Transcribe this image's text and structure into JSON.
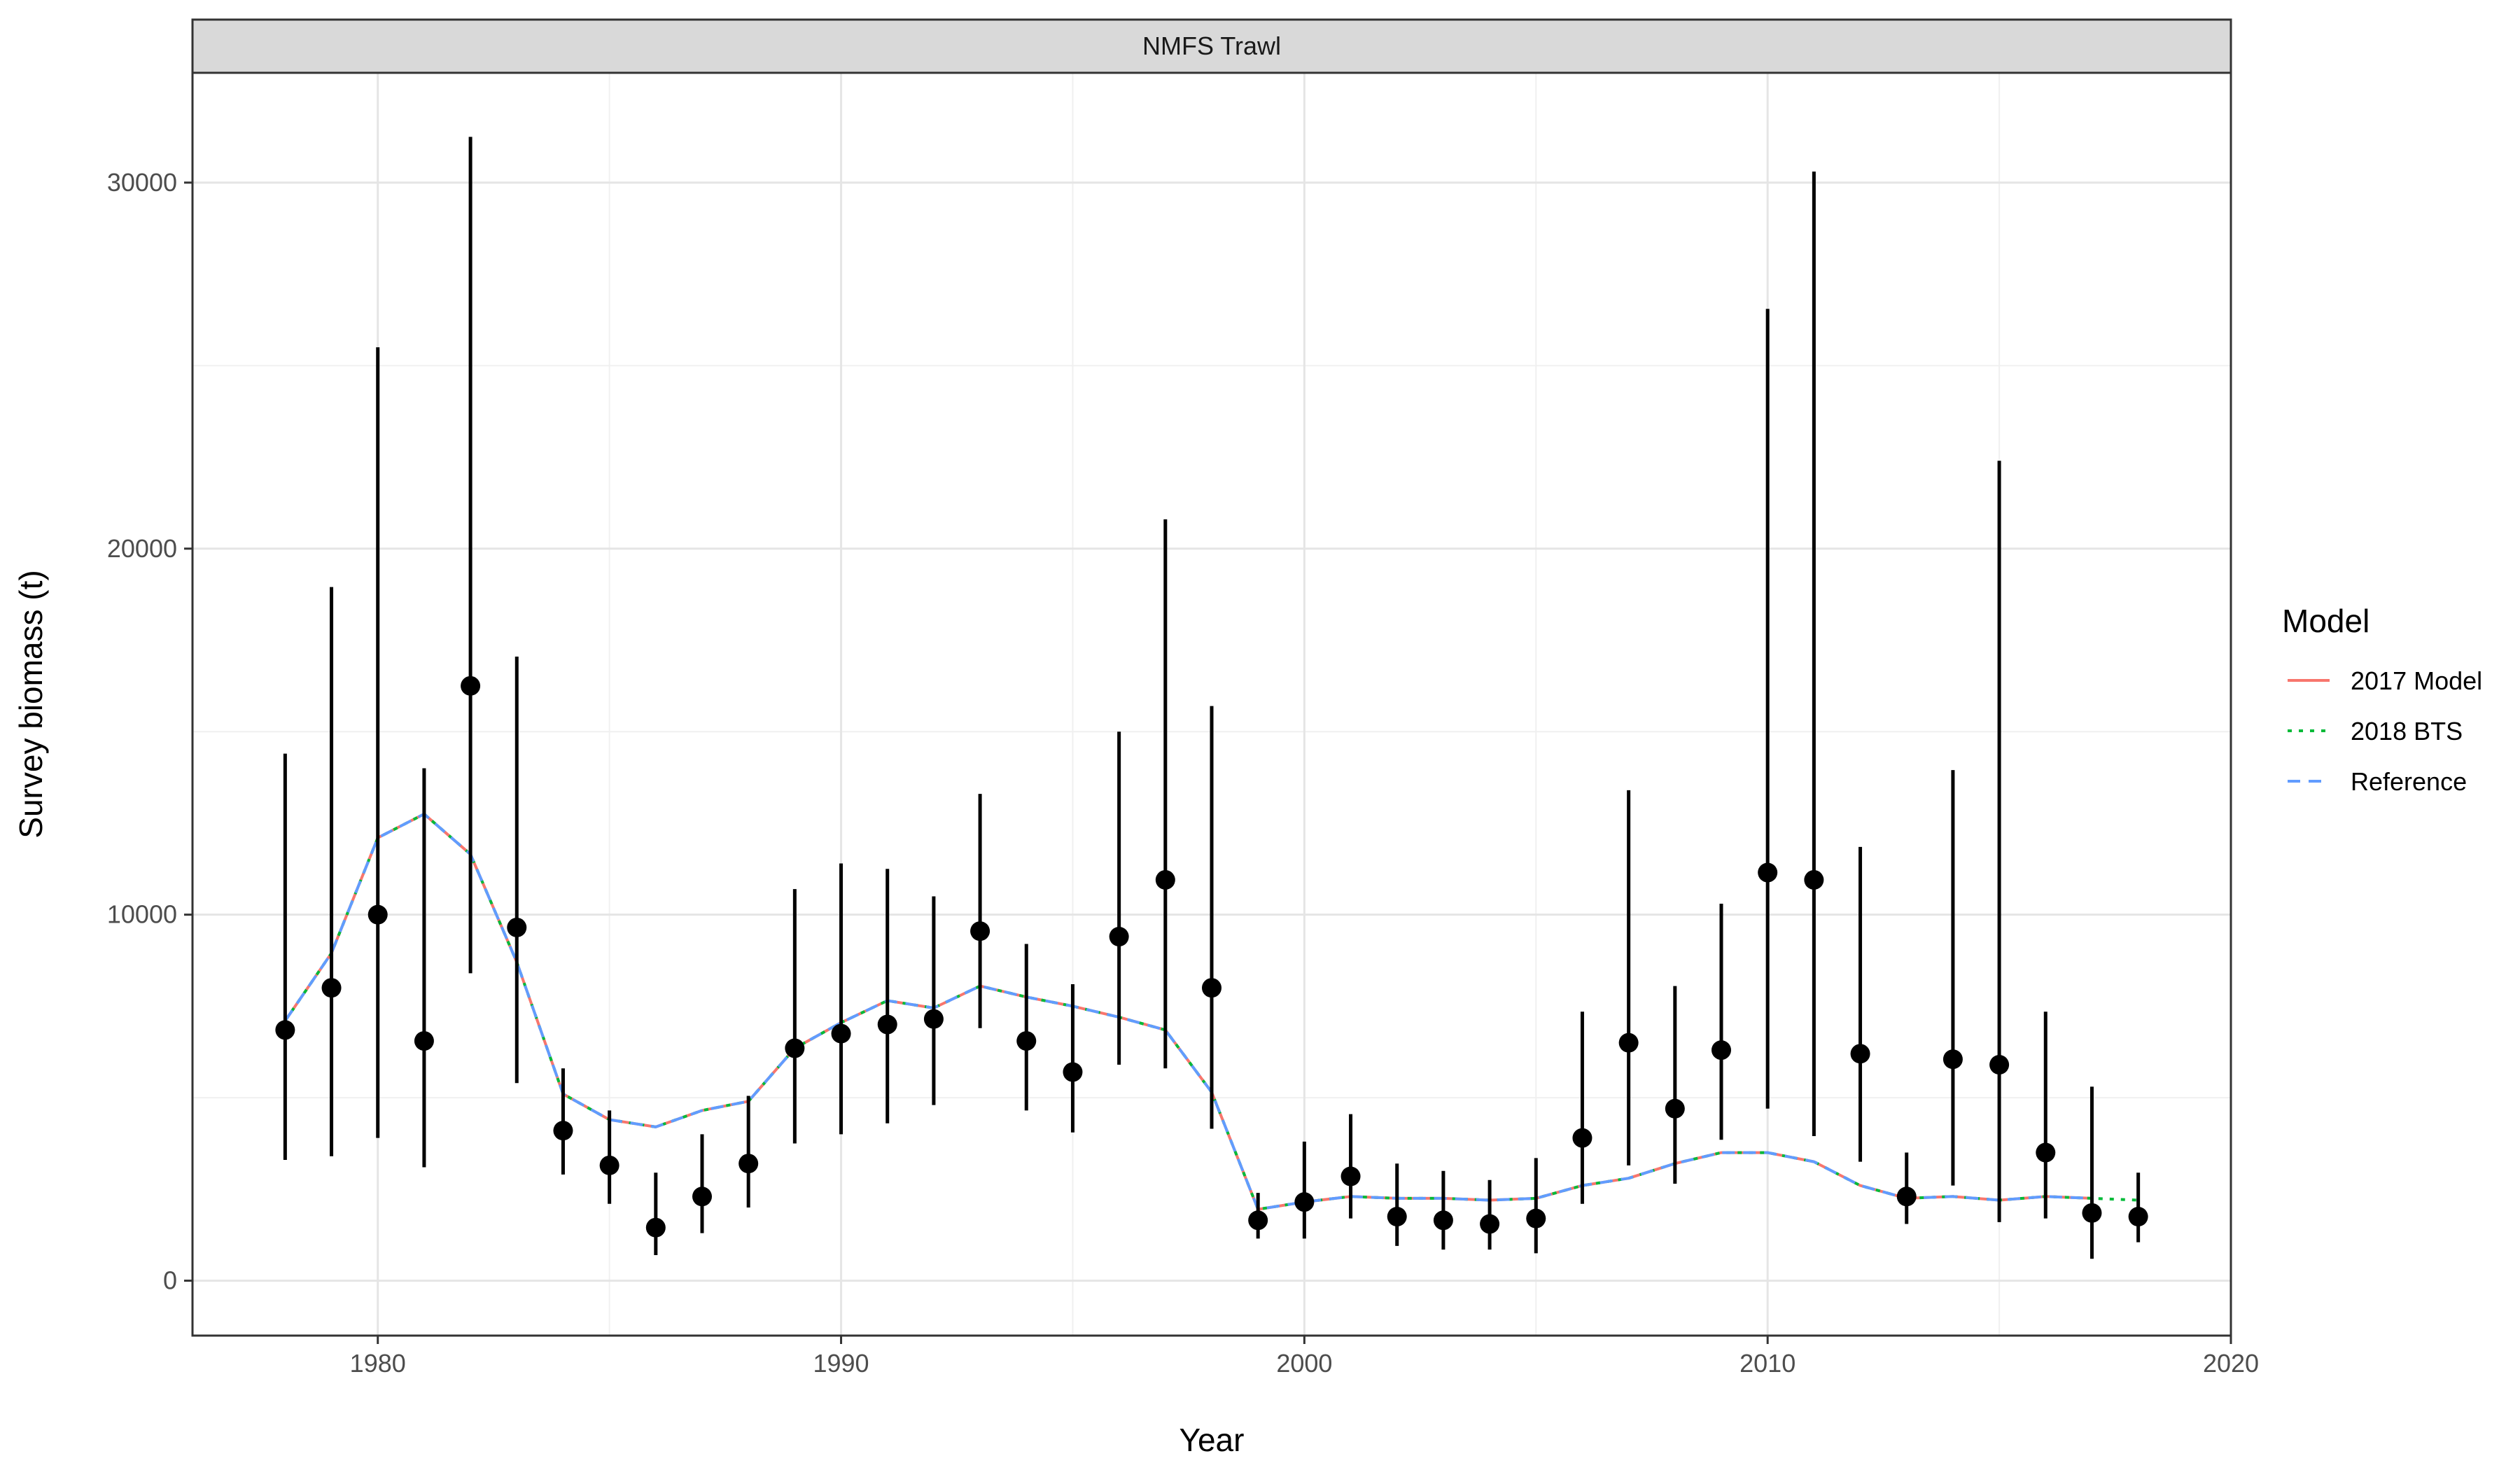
{
  "chart_data": {
    "type": "scatter",
    "panel_title": "NMFS Trawl",
    "xlabel": "Year",
    "ylabel": "Survey biomass (t)",
    "xlim": [
      1976,
      2020
    ],
    "ylim": [
      -1500,
      33000
    ],
    "x_ticks": [
      1980,
      1990,
      2000,
      2010,
      2020
    ],
    "y_ticks": [
      0,
      10000,
      20000,
      30000
    ],
    "grid": true,
    "legend": {
      "title": "Model",
      "position": "right"
    },
    "observations": {
      "x": [
        1978,
        1979,
        1980,
        1981,
        1982,
        1983,
        1984,
        1985,
        1986,
        1987,
        1988,
        1989,
        1990,
        1991,
        1992,
        1993,
        1994,
        1995,
        1996,
        1997,
        1998,
        1999,
        2000,
        2001,
        2002,
        2003,
        2004,
        2005,
        2006,
        2007,
        2008,
        2009,
        2010,
        2011,
        2012,
        2013,
        2014,
        2015,
        2016,
        2017,
        2018
      ],
      "y": [
        6850,
        8000,
        10000,
        6550,
        16250,
        9650,
        4100,
        3150,
        1450,
        2300,
        3200,
        6350,
        6750,
        7000,
        7150,
        9550,
        6550,
        5700,
        9400,
        10950,
        8000,
        1650,
        2150,
        2850,
        1750,
        1650,
        1550,
        1700,
        3900,
        6500,
        4700,
        6300,
        11150,
        10950,
        6200,
        2300,
        6050,
        5900,
        3500,
        1850,
        1750
      ],
      "lower": [
        3300,
        3400,
        3900,
        3100,
        8400,
        5400,
        2900,
        2100,
        700,
        1300,
        2000,
        3750,
        4000,
        4300,
        4800,
        6900,
        4650,
        4050,
        5900,
        5800,
        4150,
        1150,
        1150,
        1700,
        950,
        850,
        850,
        750,
        2100,
        3150,
        2650,
        3850,
        4700,
        3950,
        3250,
        1550,
        2600,
        1600,
        1700,
        600,
        1050
      ],
      "upper": [
        14400,
        18950,
        25500,
        14000,
        31250,
        17050,
        5800,
        4650,
        2950,
        4000,
        5050,
        10700,
        11400,
        11250,
        10500,
        13300,
        9200,
        8100,
        15000,
        20800,
        15700,
        2400,
        3800,
        4550,
        3200,
        3000,
        2750,
        3350,
        7350,
        13400,
        8050,
        10300,
        26550,
        30300,
        11850,
        3500,
        13950,
        22400,
        7350,
        5300,
        2950
      ]
    },
    "x": [
      1978,
      1979,
      1980,
      1981,
      1982,
      1983,
      1984,
      1985,
      1986,
      1987,
      1988,
      1989,
      1990,
      1991,
      1992,
      1993,
      1994,
      1995,
      1996,
      1997,
      1998,
      1999,
      2000,
      2001,
      2002,
      2003,
      2004,
      2005,
      2006,
      2007,
      2008,
      2009,
      2010,
      2011,
      2012,
      2013,
      2014,
      2015,
      2016,
      2017,
      2018
    ],
    "series": [
      {
        "name": "2017 Model",
        "color": "#F8766D",
        "dash": "solid",
        "values": [
          7100,
          8950,
          12100,
          12750,
          11650,
          8700,
          5100,
          4400,
          4200,
          4650,
          4900,
          6350,
          7050,
          7650,
          7450,
          8050,
          7750,
          7500,
          7200,
          6850,
          5150,
          1950,
          2150,
          2300,
          2250,
          2250,
          2200,
          2250,
          2600,
          2800,
          3200,
          3500,
          3500,
          3250,
          2600,
          2250,
          2300,
          2200,
          2300,
          2250,
          null
        ]
      },
      {
        "name": "2018 BTS",
        "color": "#00BA38",
        "dash": "dotted",
        "values": [
          7100,
          8950,
          12100,
          12750,
          11650,
          8700,
          5100,
          4400,
          4200,
          4650,
          4900,
          6350,
          7050,
          7650,
          7450,
          8050,
          7750,
          7500,
          7200,
          6850,
          5150,
          1950,
          2150,
          2300,
          2250,
          2250,
          2200,
          2250,
          2600,
          2800,
          3200,
          3500,
          3500,
          3250,
          2600,
          2250,
          2300,
          2200,
          2300,
          2250,
          2200
        ]
      },
      {
        "name": "Reference",
        "color": "#619CFF",
        "dash": "dashed",
        "values": [
          7100,
          8950,
          12100,
          12750,
          11650,
          8700,
          5100,
          4400,
          4200,
          4650,
          4900,
          6350,
          7050,
          7650,
          7450,
          8050,
          7750,
          7500,
          7200,
          6850,
          5150,
          1950,
          2150,
          2300,
          2250,
          2250,
          2200,
          2250,
          2600,
          2800,
          3200,
          3500,
          3500,
          3250,
          2600,
          2250,
          2300,
          2200,
          2300,
          2250,
          null
        ]
      }
    ]
  }
}
